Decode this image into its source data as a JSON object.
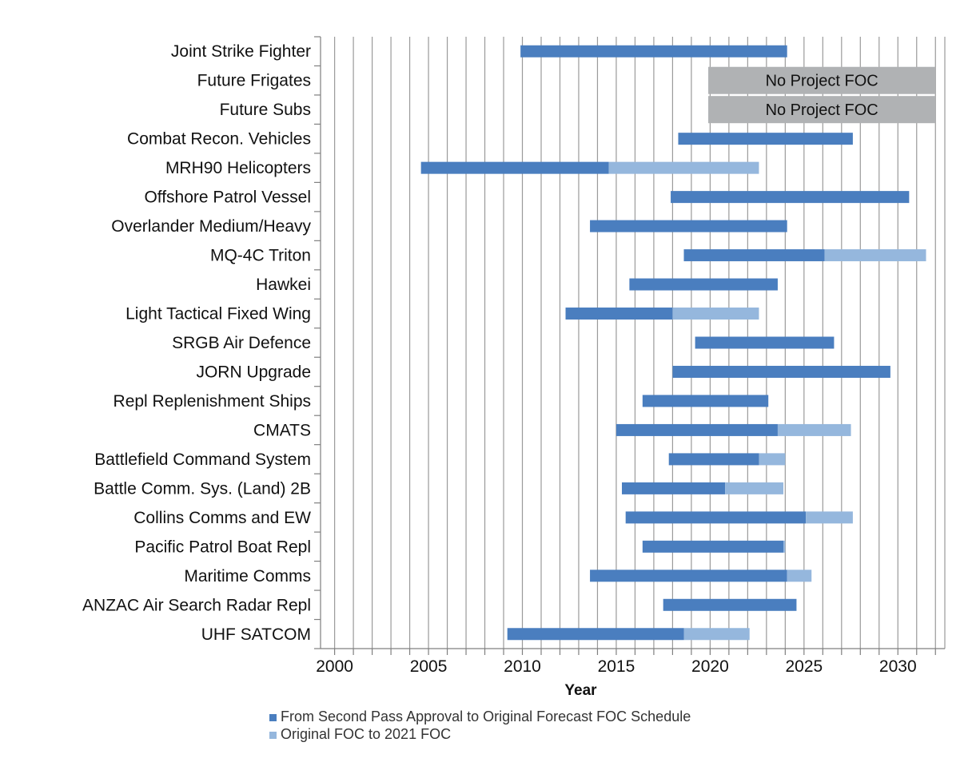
{
  "chart_data": {
    "type": "bar",
    "orientation": "horizontal-range",
    "title": "",
    "xlabel": "Year",
    "ylabel": "",
    "xlim": [
      1999.25,
      2032.5
    ],
    "grid": true,
    "legend_position": "bottom",
    "x_ticks": [
      2000,
      2005,
      2010,
      2015,
      2020,
      2025,
      2030
    ],
    "categories": [
      "Joint Strike Fighter",
      "Future Frigates",
      "Future Subs",
      "Combat Recon. Vehicles",
      "MRH90 Helicopters",
      "Offshore Patrol Vessel",
      "Overlander Medium/Heavy",
      "MQ-4C Triton",
      "Hawkei",
      "Light Tactical Fixed Wing",
      "SRGB Air Defence",
      "JORN Upgrade",
      "Repl Replenishment Ships",
      "CMATS",
      "Battlefield Command System",
      "Battle Comm. Sys. (Land) 2B",
      "Collins Comms and EW",
      "Pacific Patrol Boat Repl",
      "Maritime Comms",
      "ANZAC Air Search Radar Repl",
      "UHF SATCOM"
    ],
    "series": [
      {
        "name": "From Second Pass Approval to Original Forecast FOC Schedule",
        "color": "#4a7ebf",
        "ranges": [
          [
            2009.9,
            2024.1
          ],
          null,
          null,
          [
            2018.3,
            2027.6
          ],
          [
            2004.6,
            2014.6
          ],
          [
            2017.9,
            2030.6
          ],
          [
            2013.6,
            2024.1
          ],
          [
            2018.6,
            2026.1
          ],
          [
            2015.7,
            2023.6
          ],
          [
            2012.3,
            2018.0
          ],
          [
            2019.2,
            2026.6
          ],
          [
            2018.0,
            2029.6
          ],
          [
            2016.4,
            2023.1
          ],
          [
            2015.0,
            2023.6
          ],
          [
            2017.8,
            2022.6
          ],
          [
            2015.3,
            2020.8
          ],
          [
            2015.5,
            2025.1
          ],
          [
            2016.4,
            2023.9
          ],
          [
            2013.6,
            2024.1
          ],
          [
            2017.5,
            2024.6
          ],
          [
            2009.2,
            2018.6
          ]
        ]
      },
      {
        "name": "Original FOC to 2021 FOC",
        "color": "#95b7dd",
        "ranges": [
          null,
          null,
          null,
          null,
          [
            2014.6,
            2022.6
          ],
          null,
          null,
          [
            2026.1,
            2031.5
          ],
          null,
          [
            2018.0,
            2022.6
          ],
          null,
          null,
          null,
          [
            2023.6,
            2027.5
          ],
          [
            2022.6,
            2024.0
          ],
          [
            2020.8,
            2023.9
          ],
          [
            2025.1,
            2027.6
          ],
          [
            2023.9,
            2024.0
          ],
          [
            2024.1,
            2025.4
          ],
          null,
          [
            2018.6,
            2022.1
          ]
        ]
      }
    ],
    "no_foc_bars": [
      {
        "category": "Future Frigates",
        "label": "No Project FOC",
        "start": 2019.9,
        "end": 2032.0,
        "color": "#b0b2b4"
      },
      {
        "category": "Future Subs",
        "label": "No Project FOC",
        "start": 2019.9,
        "end": 2032.0,
        "color": "#b0b2b4"
      }
    ]
  }
}
